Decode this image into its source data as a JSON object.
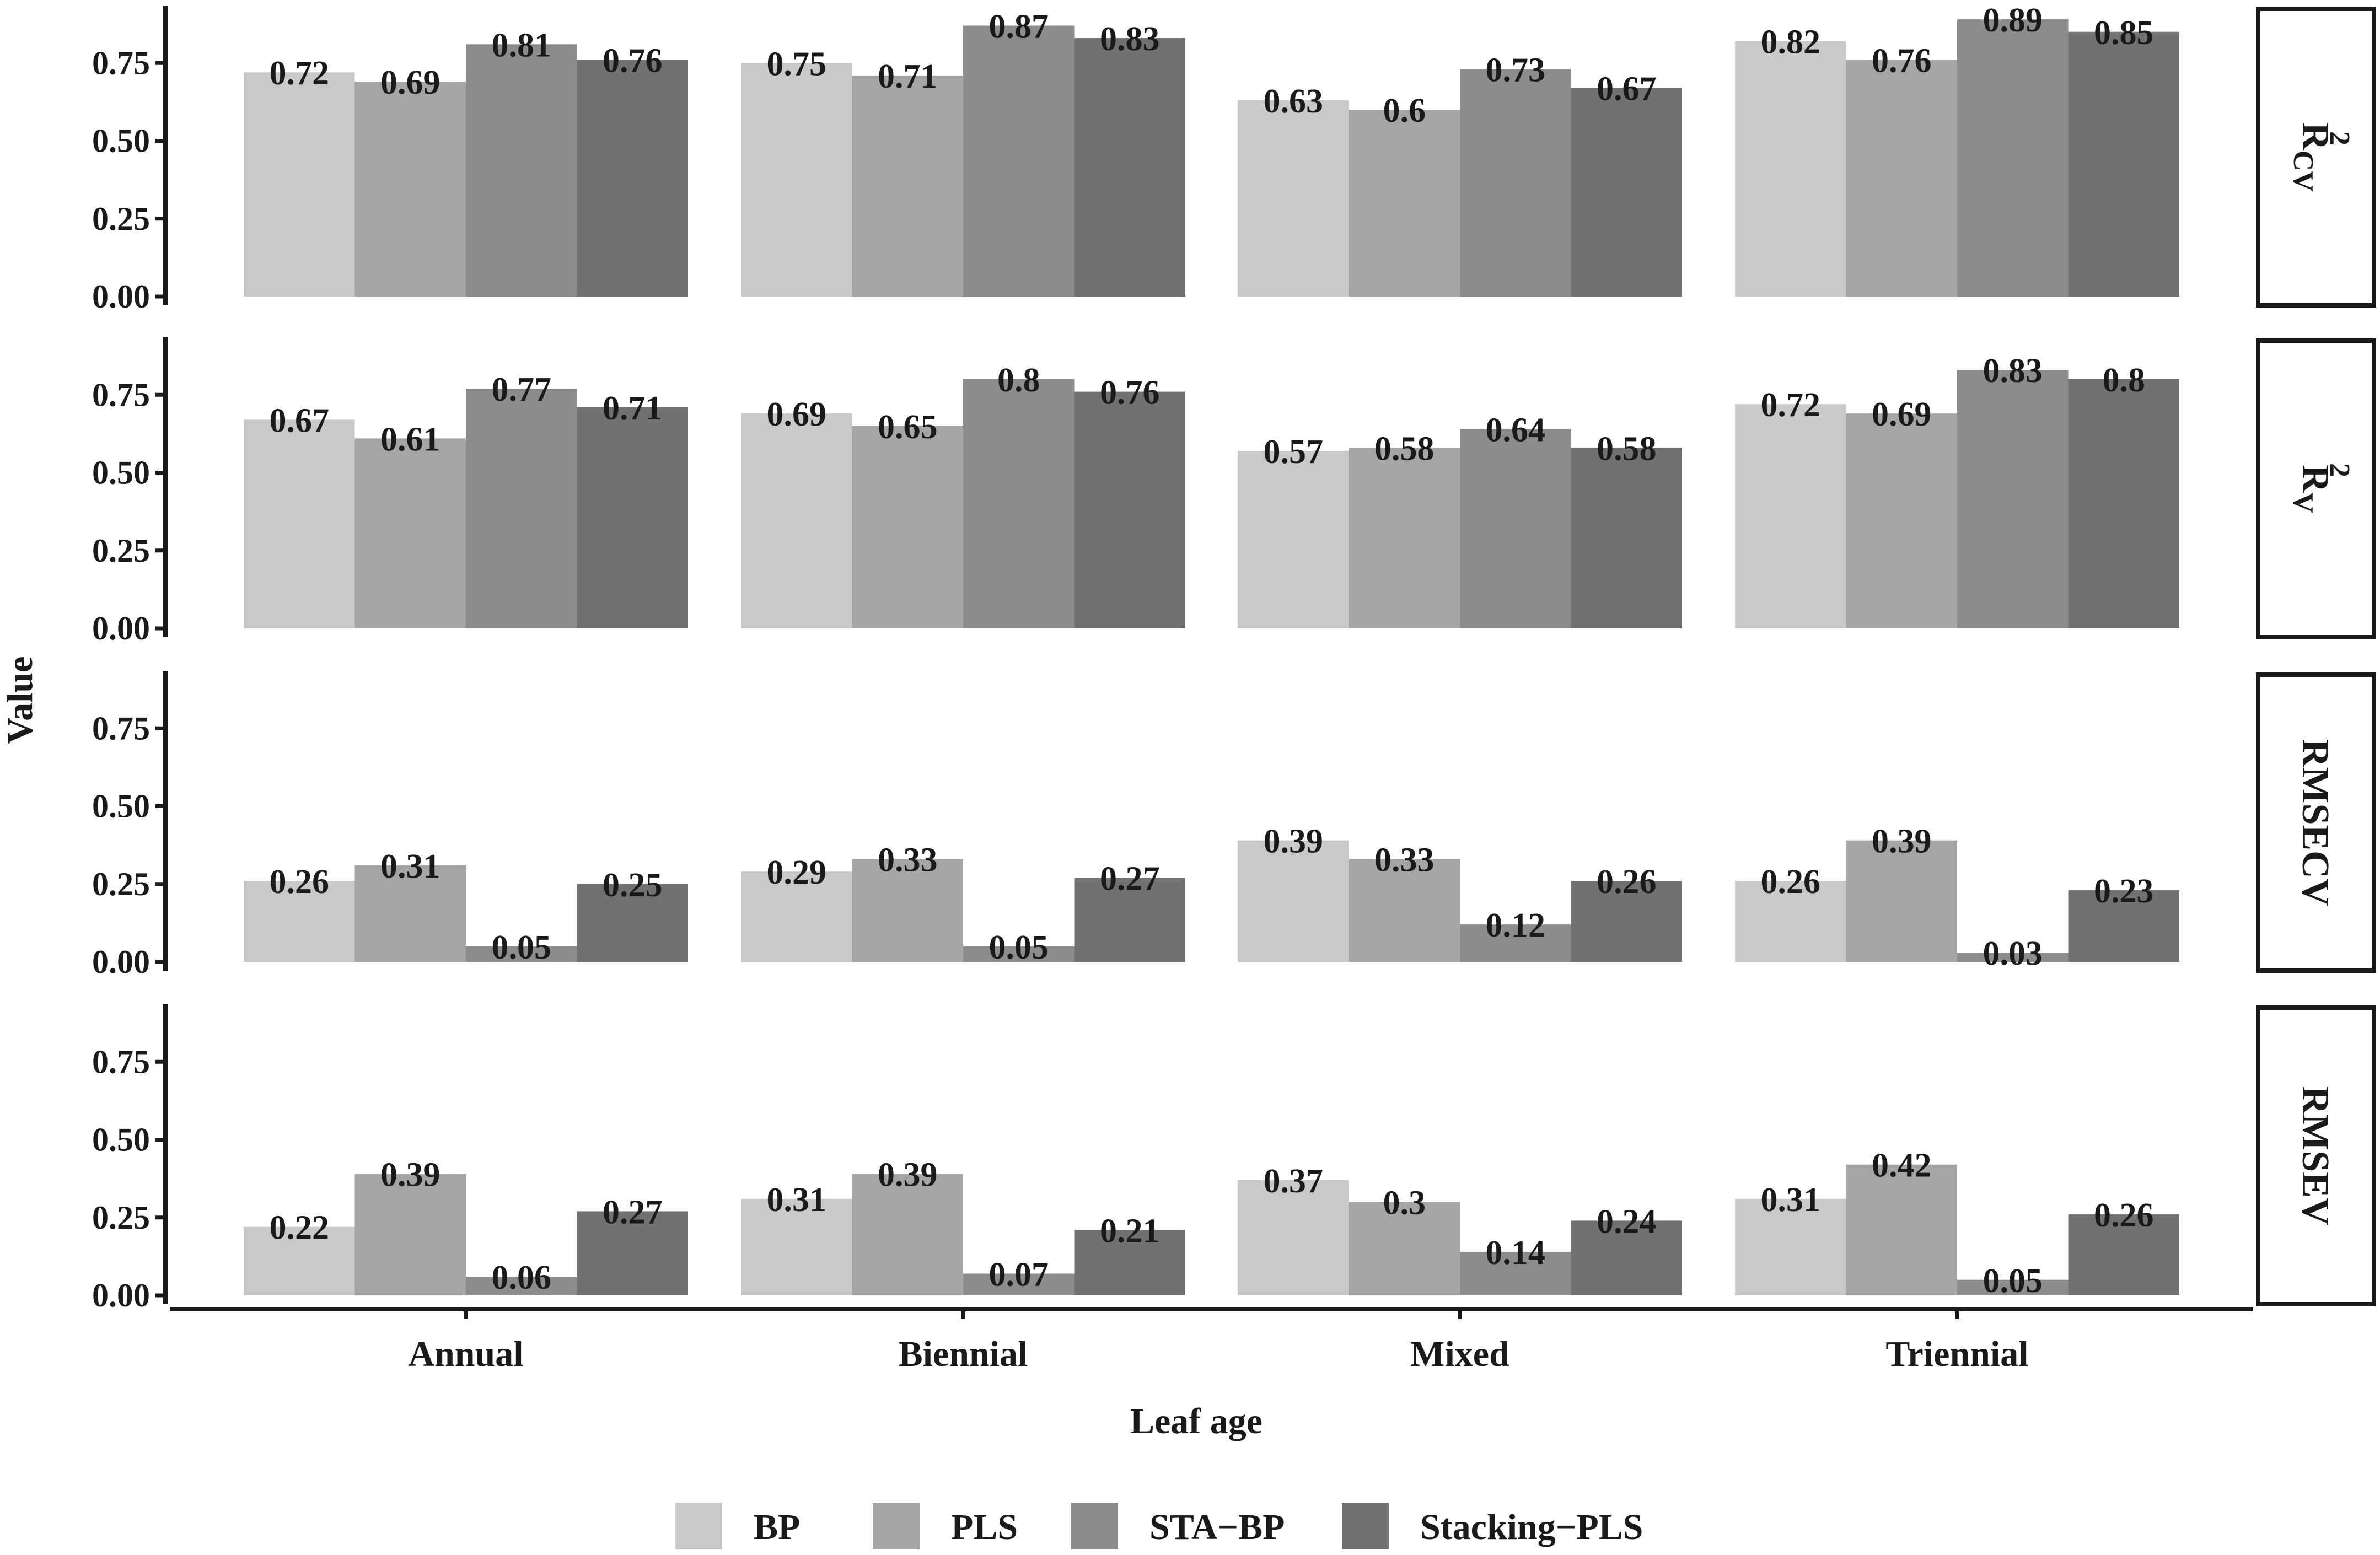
{
  "chart_data": {
    "type": "bar",
    "facet_layout": "rows",
    "categories": [
      "Annual",
      "Biennial",
      "Mixed",
      "Triennial"
    ],
    "xlabel": "Leaf age",
    "ylabel": "Value",
    "ylim": [
      0,
      0.9
    ],
    "yticks": [
      "0.00",
      "0.25",
      "0.50",
      "0.75"
    ],
    "ytick_values": [
      0,
      0.25,
      0.5,
      0.75
    ],
    "legend_position": "bottom",
    "series": [
      {
        "name": "BP",
        "color": "#c8c9cb"
      },
      {
        "name": "PLS",
        "color": "#a4a5a7"
      },
      {
        "name": "STA−BP",
        "color": "#8b8c8e"
      },
      {
        "name": "Stacking−PLS",
        "color": "#707173"
      }
    ],
    "facets": [
      {
        "strip_main": "R",
        "strip_sup": "2",
        "strip_sub": "CV",
        "values": {
          "BP": [
            0.72,
            0.75,
            0.63,
            0.82
          ],
          "PLS": [
            0.69,
            0.71,
            0.6,
            0.76
          ],
          "STA−BP": [
            0.81,
            0.87,
            0.73,
            0.89
          ],
          "Stacking−PLS": [
            0.76,
            0.83,
            0.67,
            0.85
          ]
        }
      },
      {
        "strip_main": "R",
        "strip_sup": "2",
        "strip_sub": "V",
        "values": {
          "BP": [
            0.67,
            0.69,
            0.57,
            0.72
          ],
          "PLS": [
            0.61,
            0.65,
            0.58,
            0.69
          ],
          "STA−BP": [
            0.77,
            0.8,
            0.64,
            0.83
          ],
          "Stacking−PLS": [
            0.71,
            0.76,
            0.58,
            0.8
          ]
        }
      },
      {
        "strip_main": "RMSECV",
        "strip_sup": "",
        "strip_sub": "",
        "values": {
          "BP": [
            0.26,
            0.29,
            0.39,
            0.26
          ],
          "PLS": [
            0.31,
            0.33,
            0.33,
            0.39
          ],
          "STA−BP": [
            0.05,
            0.05,
            0.12,
            0.03
          ],
          "Stacking−PLS": [
            0.25,
            0.27,
            0.26,
            0.23
          ]
        }
      },
      {
        "strip_main": "RMSEV",
        "strip_sup": "",
        "strip_sub": "",
        "values": {
          "BP": [
            0.22,
            0.31,
            0.37,
            0.31
          ],
          "PLS": [
            0.39,
            0.39,
            0.3,
            0.42
          ],
          "STA−BP": [
            0.06,
            0.07,
            0.14,
            0.05
          ],
          "Stacking−PLS": [
            0.27,
            0.21,
            0.24,
            0.26
          ]
        }
      }
    ]
  }
}
